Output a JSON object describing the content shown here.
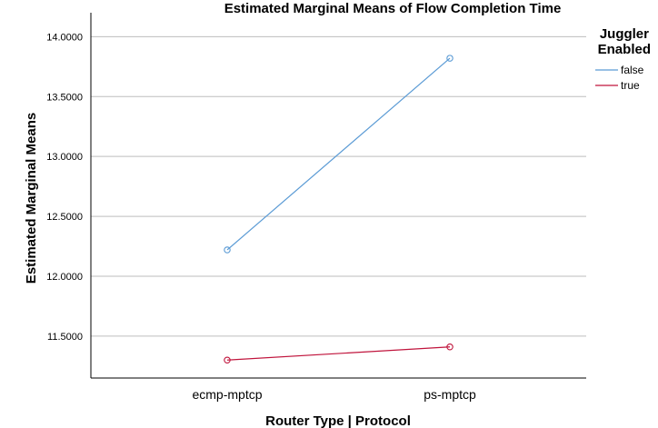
{
  "chart_data": {
    "type": "line",
    "title": "Estimated Marginal Means of Flow Completion Time",
    "xlabel": "Router Type | Protocol",
    "ylabel": "Estimated Marginal Means",
    "categories": [
      "ecmp-mptcp",
      "ps-mptcp"
    ],
    "ylim": [
      11.15,
      14.2
    ],
    "yticks": [
      "11.5000",
      "12.0000",
      "12.5000",
      "13.0000",
      "13.5000",
      "14.0000"
    ],
    "grid": true,
    "legend": {
      "title_line1": "Juggler",
      "title_line2": "Enabled",
      "placement": "right"
    },
    "series": [
      {
        "name": "false",
        "values": [
          12.22,
          13.82
        ],
        "color": "#5b9bd5"
      },
      {
        "name": "true",
        "values": [
          11.3,
          11.41
        ],
        "color": "#c0143c"
      }
    ]
  }
}
